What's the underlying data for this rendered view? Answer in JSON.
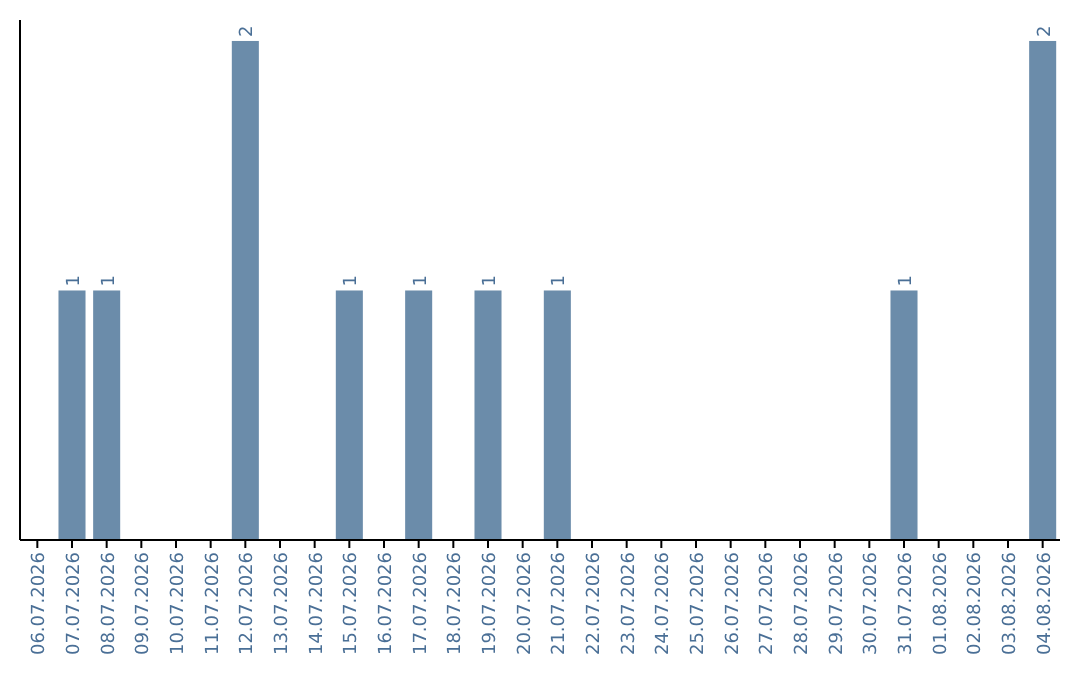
{
  "chart_data": {
    "type": "bar",
    "categories": [
      "06.07.2026",
      "07.07.2026",
      "08.07.2026",
      "09.07.2026",
      "10.07.2026",
      "11.07.2026",
      "12.07.2026",
      "13.07.2026",
      "14.07.2026",
      "15.07.2026",
      "16.07.2026",
      "17.07.2026",
      "18.07.2026",
      "19.07.2026",
      "20.07.2026",
      "21.07.2026",
      "22.07.2026",
      "23.07.2026",
      "24.07.2026",
      "25.07.2026",
      "26.07.2026",
      "27.07.2026",
      "28.07.2026",
      "29.07.2026",
      "30.07.2026",
      "31.07.2026",
      "01.08.2026",
      "02.08.2026",
      "03.08.2026",
      "04.08.2026"
    ],
    "values": [
      0,
      1,
      1,
      0,
      0,
      0,
      2,
      0,
      0,
      1,
      0,
      1,
      0,
      1,
      0,
      1,
      0,
      0,
      0,
      0,
      0,
      0,
      0,
      0,
      0,
      1,
      0,
      0,
      0,
      2
    ],
    "value_labels": [
      null,
      "1",
      "1",
      null,
      null,
      null,
      "2",
      null,
      null,
      "1",
      null,
      "1",
      null,
      "1",
      null,
      "1",
      null,
      null,
      null,
      null,
      null,
      null,
      null,
      null,
      null,
      "1",
      null,
      null,
      null,
      "2"
    ],
    "color": "#6b8caa"
  }
}
